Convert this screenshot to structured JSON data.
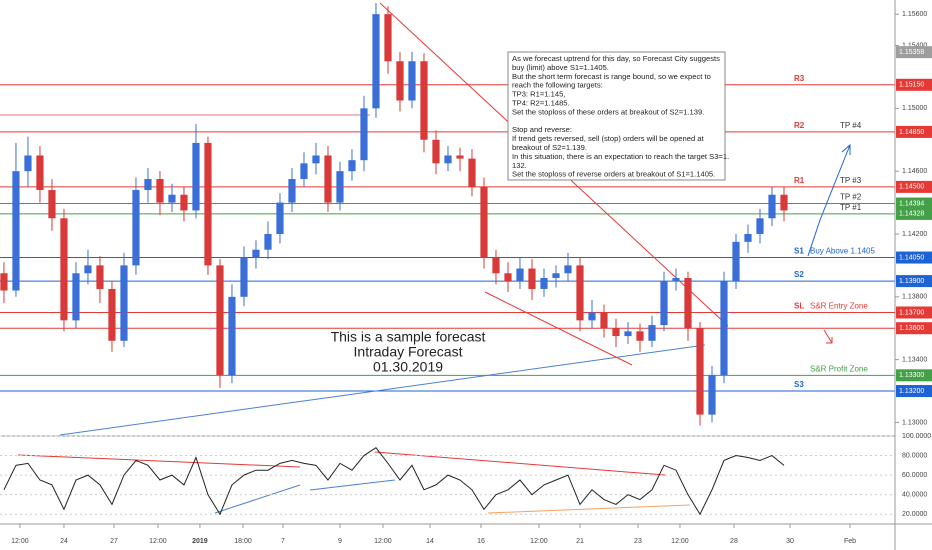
{
  "chart_data": {
    "type": "candlestick",
    "up_color": "#3a6fd8",
    "down_color": "#d83a3a",
    "xlim": [
      -0.33,
      74.25
    ],
    "xticks": [
      {
        "value": 1.33,
        "label": "12:00"
      },
      {
        "value": 5,
        "label": "24"
      },
      {
        "value": 9.17,
        "label": "27"
      },
      {
        "value": 12.83,
        "label": "12:00"
      },
      {
        "value": 16.33,
        "label": "2019"
      },
      {
        "value": 19.92,
        "label": "18:00"
      },
      {
        "value": 23.25,
        "label": "7"
      },
      {
        "value": 28,
        "label": "9"
      },
      {
        "value": 31.58,
        "label": "12:00"
      },
      {
        "value": 35.5,
        "label": "14"
      },
      {
        "value": 39.75,
        "label": "16"
      },
      {
        "value": 44.58,
        "label": "12:00"
      },
      {
        "value": 48,
        "label": "21"
      },
      {
        "value": 52.83,
        "label": "23"
      },
      {
        "value": 56.33,
        "label": "12:00"
      },
      {
        "value": 60.83,
        "label": "28"
      },
      {
        "value": 65.5,
        "label": "30"
      },
      {
        "value": 70.5,
        "label": "Feb"
      }
    ],
    "ylim": [
      1.1292,
      1.1569
    ],
    "yticks": [
      {
        "value": 1.156,
        "label": "1.15600"
      },
      {
        "value": 1.154,
        "label": "1.15400"
      },
      {
        "value": 1.15,
        "label": "1.15000"
      },
      {
        "value": 1.146,
        "label": "1.14600"
      },
      {
        "value": 1.142,
        "label": "1.14200"
      },
      {
        "value": 1.138,
        "label": "1.13800"
      },
      {
        "value": 1.134,
        "label": "1.13400"
      },
      {
        "value": 1.13,
        "label": "1.13000"
      }
    ],
    "candles": [
      [
        1.1395,
        1.1402,
        1.1376,
        1.1384
      ],
      [
        1.1384,
        1.1478,
        1.138,
        1.146
      ],
      [
        1.146,
        1.1482,
        1.145,
        1.147
      ],
      [
        1.147,
        1.1476,
        1.144,
        1.1448
      ],
      [
        1.1448,
        1.1455,
        1.1422,
        1.143
      ],
      [
        1.143,
        1.1436,
        1.1358,
        1.1365
      ],
      [
        1.1365,
        1.1402,
        1.136,
        1.1395
      ],
      [
        1.1395,
        1.141,
        1.1388,
        1.14
      ],
      [
        1.14,
        1.1406,
        1.1376,
        1.1385
      ],
      [
        1.1385,
        1.139,
        1.1345,
        1.1352
      ],
      [
        1.1352,
        1.1408,
        1.1348,
        1.14
      ],
      [
        1.14,
        1.1456,
        1.1394,
        1.1448
      ],
      [
        1.1448,
        1.1462,
        1.144,
        1.1455
      ],
      [
        1.1455,
        1.146,
        1.1432,
        1.144
      ],
      [
        1.144,
        1.1452,
        1.1434,
        1.1445
      ],
      [
        1.1445,
        1.145,
        1.1428,
        1.1435
      ],
      [
        1.1435,
        1.149,
        1.143,
        1.1478
      ],
      [
        1.1478,
        1.1482,
        1.1394,
        1.14
      ],
      [
        1.14,
        1.1404,
        1.1322,
        1.133
      ],
      [
        1.133,
        1.1388,
        1.1325,
        1.138
      ],
      [
        1.138,
        1.1412,
        1.1374,
        1.1405
      ],
      [
        1.1405,
        1.1416,
        1.1398,
        1.141
      ],
      [
        1.141,
        1.1428,
        1.1404,
        1.142
      ],
      [
        1.142,
        1.1446,
        1.1414,
        1.144
      ],
      [
        1.144,
        1.1462,
        1.1434,
        1.1455
      ],
      [
        1.1455,
        1.1472,
        1.145,
        1.1465
      ],
      [
        1.1465,
        1.1478,
        1.1458,
        1.147
      ],
      [
        1.147,
        1.1476,
        1.1434,
        1.144
      ],
      [
        1.144,
        1.1466,
        1.1435,
        1.146
      ],
      [
        1.146,
        1.1474,
        1.1454,
        1.1467
      ],
      [
        1.1467,
        1.1508,
        1.146,
        1.15
      ],
      [
        1.15,
        1.1567,
        1.1494,
        1.156
      ],
      [
        1.156,
        1.1565,
        1.1522,
        1.153
      ],
      [
        1.153,
        1.1536,
        1.1498,
        1.1505
      ],
      [
        1.1505,
        1.1536,
        1.15,
        1.153
      ],
      [
        1.153,
        1.1535,
        1.1472,
        1.148
      ],
      [
        1.148,
        1.1486,
        1.1458,
        1.1465
      ],
      [
        1.1465,
        1.1476,
        1.146,
        1.147
      ],
      [
        1.147,
        1.1475,
        1.146,
        1.1468
      ],
      [
        1.1468,
        1.1474,
        1.1444,
        1.145
      ],
      [
        1.145,
        1.1456,
        1.1398,
        1.1405
      ],
      [
        1.1405,
        1.141,
        1.1388,
        1.1395
      ],
      [
        1.1395,
        1.1402,
        1.1383,
        1.139
      ],
      [
        1.139,
        1.1405,
        1.1385,
        1.1398
      ],
      [
        1.1398,
        1.1404,
        1.1378,
        1.1385
      ],
      [
        1.1385,
        1.1398,
        1.138,
        1.1392
      ],
      [
        1.1392,
        1.14,
        1.1386,
        1.1395
      ],
      [
        1.1395,
        1.1408,
        1.139,
        1.14
      ],
      [
        1.14,
        1.1405,
        1.1358,
        1.1365
      ],
      [
        1.1365,
        1.1378,
        1.136,
        1.137
      ],
      [
        1.137,
        1.1375,
        1.1354,
        1.136
      ],
      [
        1.136,
        1.1366,
        1.1348,
        1.1355
      ],
      [
        1.1355,
        1.1364,
        1.135,
        1.1358
      ],
      [
        1.1358,
        1.1363,
        1.1345,
        1.1352
      ],
      [
        1.1352,
        1.1368,
        1.1348,
        1.1362
      ],
      [
        1.1362,
        1.1396,
        1.1358,
        1.139
      ],
      [
        1.139,
        1.1398,
        1.1384,
        1.1392
      ],
      [
        1.1392,
        1.1396,
        1.1352,
        1.136
      ],
      [
        1.136,
        1.1364,
        1.1298,
        1.1305
      ],
      [
        1.1305,
        1.1336,
        1.13,
        1.133
      ],
      [
        1.133,
        1.1396,
        1.1325,
        1.139
      ],
      [
        1.139,
        1.142,
        1.1385,
        1.1415
      ],
      [
        1.1415,
        1.1426,
        1.1408,
        1.142
      ],
      [
        1.142,
        1.1436,
        1.1414,
        1.143
      ],
      [
        1.143,
        1.145,
        1.1425,
        1.1445
      ],
      [
        1.1445,
        1.145,
        1.1428,
        1.1435
      ]
    ],
    "levels": [
      {
        "value": 1.15358,
        "label": "1.15358",
        "color": "#9e9e9e",
        "line": false
      },
      {
        "value": 1.1515,
        "label": "1.15150",
        "color": "#e53935",
        "line": true,
        "tag": "R3"
      },
      {
        "value": 1.1485,
        "label": "1.14850",
        "color": "#e53935",
        "line": true,
        "tag": "R2",
        "target": "TP #4"
      },
      {
        "value": 1.145,
        "label": "1.14500",
        "color": "#e53935",
        "line": true,
        "tag": "R1",
        "target": "TP #3"
      },
      {
        "value": 1.14394,
        "label": "1.14394",
        "color": "#43a047",
        "line": true,
        "target": "TP #2"
      },
      {
        "value": 1.14328,
        "label": "1.14328",
        "color": "#43a047",
        "line": true,
        "target": "TP #1"
      },
      {
        "value": 1.1405,
        "label": "1.14050",
        "color": "#1e63d6",
        "line": true,
        "tag": "S1",
        "note": "Buy Above 1.1405"
      },
      {
        "value": 1.139,
        "label": "1.13900",
        "color": "#1e63d6",
        "line": true,
        "tag": "S2"
      },
      {
        "value": 1.137,
        "label": "1.13700",
        "color": "#e53935",
        "line": true,
        "tag": "SL",
        "note": "S&R Entry Zone"
      },
      {
        "value": 1.136,
        "label": "1.13600",
        "color": "#e53935",
        "line": true
      },
      {
        "value": 1.133,
        "label": "1.13300",
        "color": "#43a047",
        "line": true,
        "note": "S&R Profit Zone"
      },
      {
        "value": 1.132,
        "label": "1.13200",
        "color": "#1e63d6",
        "line": true,
        "tag": "S3"
      }
    ],
    "oscillator": {
      "values": [
        45,
        70,
        72,
        55,
        50,
        25,
        55,
        60,
        50,
        30,
        60,
        75,
        70,
        55,
        60,
        50,
        78,
        40,
        20,
        50,
        60,
        65,
        65,
        72,
        75,
        72,
        70,
        55,
        72,
        65,
        80,
        88,
        72,
        55,
        70,
        45,
        50,
        60,
        55,
        45,
        25,
        40,
        45,
        55,
        40,
        50,
        55,
        60,
        30,
        45,
        35,
        30,
        40,
        35,
        45,
        70,
        65,
        40,
        20,
        45,
        75,
        80,
        78,
        75,
        80,
        70
      ],
      "ylim": [
        10,
        100
      ],
      "yticks": [
        {
          "value": 100,
          "label": "100.0000"
        },
        {
          "value": 80,
          "label": "80.0000"
        },
        {
          "value": 60,
          "label": "60.0000"
        },
        {
          "value": 40,
          "label": "40.0000"
        },
        {
          "value": 20,
          "label": "20.0000"
        }
      ]
    },
    "annotation": [
      "As we forecast uptrend for this day, so Forecast City suggests",
      "buy (limit) above S1=1.1405.",
      "But the short term forecast is range bound, so we expect to",
      "reach the following targets:",
      "TP3: R1=1.145,",
      "TP4: R2=1.1485.",
      "Set the stoploss of these orders at breakout of S2=1.139.",
      "",
      "Stop and reverse:",
      "If trend gets reversed, sell (stop) orders will be opened at",
      "breakout of S2=1.139.",
      "In this situation, there is an expectation to reach the target S3=1.",
      "132.",
      "Set the stoploss of reverse orders at breakout of S1=1.1405."
    ],
    "caption": [
      "This is a sample forecast",
      "Intraday Forecast",
      "01.30.2019"
    ]
  }
}
